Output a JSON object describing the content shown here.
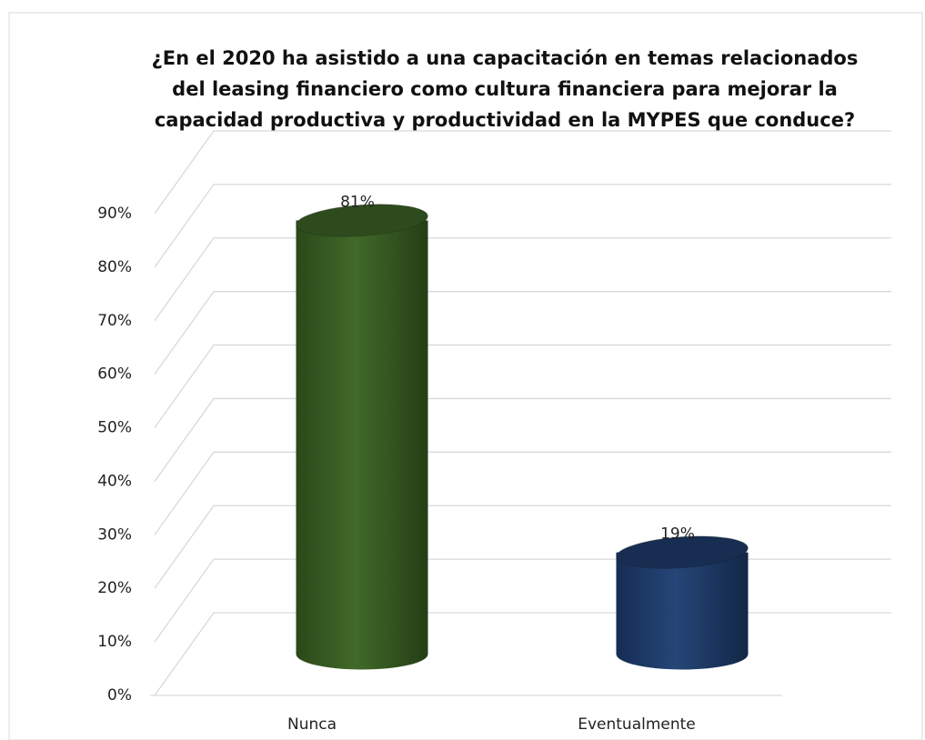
{
  "chart_data": {
    "type": "bar",
    "title": "¿En el 2020 ha asistido a una capacitación en temas relacionados\ndel   leasing financiero como cultura financiera para mejorar la\ncapacidad productiva y productividad en la MYPES que conduce?",
    "categories": [
      "Nunca",
      "Eventualmente"
    ],
    "series": [
      {
        "colors": [
          "#3d6426",
          "#1f3d6e"
        ],
        "values": [
          81,
          19
        ],
        "value_labels": [
          "81%",
          "19%"
        ]
      }
    ],
    "ylim": [
      0,
      90
    ],
    "yticks": [
      {
        "value": 0,
        "label": "0%"
      },
      {
        "value": 10,
        "label": "10%"
      },
      {
        "value": 20,
        "label": "20%"
      },
      {
        "value": 30,
        "label": "30%"
      },
      {
        "value": 40,
        "label": "40%"
      },
      {
        "value": 50,
        "label": "50%"
      },
      {
        "value": 60,
        "label": "60%"
      },
      {
        "value": 70,
        "label": "70%"
      },
      {
        "value": 80,
        "label": "80%"
      },
      {
        "value": 90,
        "label": "90%"
      }
    ],
    "grid": true
  }
}
